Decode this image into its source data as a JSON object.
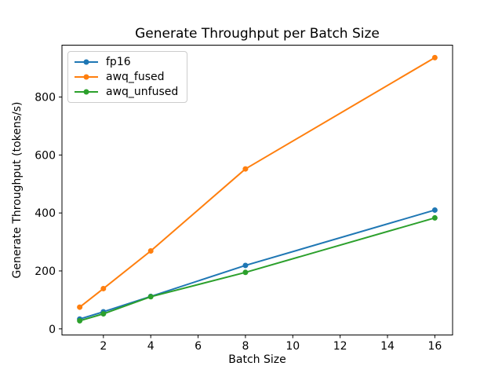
{
  "chart_data": {
    "type": "line",
    "title": "Generate Throughput per Batch Size",
    "xlabel": "Batch Size",
    "ylabel": "Generate Throughput (tokens/s)",
    "x": [
      1,
      2,
      4,
      8,
      16
    ],
    "series": [
      {
        "name": "fp16",
        "color": "#1f77b4",
        "values": [
          34,
          59,
          112,
          219,
          410
        ]
      },
      {
        "name": "awq_fused",
        "color": "#ff7f0e",
        "values": [
          75,
          139,
          269,
          552,
          936
        ]
      },
      {
        "name": "awq_unfused",
        "color": "#2ca02c",
        "values": [
          28,
          52,
          111,
          195,
          383
        ]
      }
    ],
    "xticks": [
      2,
      4,
      6,
      8,
      10,
      12,
      14,
      16
    ],
    "yticks": [
      0,
      200,
      400,
      600,
      800
    ],
    "xlim": [
      0.25,
      16.75
    ],
    "ylim": [
      -21,
      979
    ],
    "grid": false,
    "legend_position": "upper left",
    "marker": "o",
    "axis_color": "#000000",
    "legend_border_color": "#cccccc"
  }
}
